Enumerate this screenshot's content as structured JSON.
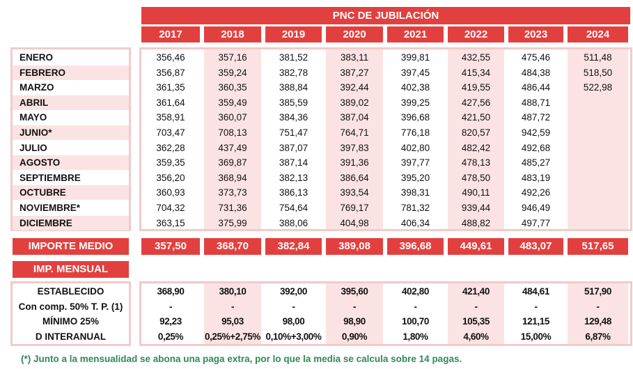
{
  "title": "PNC DE JUBILACIÓN",
  "years": [
    "2017",
    "2018",
    "2019",
    "2020",
    "2021",
    "2022",
    "2023",
    "2024"
  ],
  "months": [
    {
      "label": "ENERO",
      "values": [
        "356,46",
        "357,16",
        "381,52",
        "383,11",
        "399,81",
        "432,55",
        "475,46",
        "511,48"
      ]
    },
    {
      "label": "FEBRERO",
      "values": [
        "356,87",
        "359,24",
        "382,78",
        "387,27",
        "397,45",
        "415,34",
        "484,38",
        "518,50"
      ]
    },
    {
      "label": "MARZO",
      "values": [
        "361,35",
        "360,35",
        "388,84",
        "392,44",
        "402,38",
        "419,55",
        "486,44",
        "522,98"
      ]
    },
    {
      "label": "ABRIL",
      "values": [
        "361,64",
        "359,49",
        "385,59",
        "389,02",
        "399,25",
        "427,56",
        "488,71",
        ""
      ]
    },
    {
      "label": "MAYO",
      "values": [
        "358,91",
        "360,07",
        "384,36",
        "387,04",
        "396,68",
        "421,50",
        "487,72",
        ""
      ]
    },
    {
      "label": "JUNIO*",
      "values": [
        "703,47",
        "708,13",
        "751,47",
        "764,71",
        "776,18",
        "820,57",
        "942,59",
        ""
      ]
    },
    {
      "label": "JULIO",
      "values": [
        "362,28",
        "437,49",
        "387,07",
        "397,83",
        "402,80",
        "482,42",
        "492,68",
        ""
      ]
    },
    {
      "label": "AGOSTO",
      "values": [
        "359,35",
        "369,87",
        "387,14",
        "391,36",
        "397,77",
        "478,13",
        "485,27",
        ""
      ]
    },
    {
      "label": "SEPTIEMBRE",
      "values": [
        "356,20",
        "368,94",
        "382,13",
        "386,64",
        "395,20",
        "478,50",
        "483,19",
        ""
      ]
    },
    {
      "label": "OCTUBRE",
      "values": [
        "360,93",
        "373,73",
        "386,13",
        "393,54",
        "398,31",
        "490,11",
        "492,26",
        ""
      ]
    },
    {
      "label": "NOVIEMBRE*",
      "values": [
        "704,32",
        "731,36",
        "754,64",
        "769,17",
        "781,32",
        "939,44",
        "946,49",
        ""
      ]
    },
    {
      "label": "DICIEMBRE",
      "values": [
        "363,15",
        "375,99",
        "388,06",
        "404,98",
        "406,34",
        "488,82",
        "497,77",
        ""
      ]
    }
  ],
  "importe_medio": {
    "label": "IMPORTE MEDIO",
    "values": [
      "357,50",
      "368,70",
      "382,84",
      "389,08",
      "396,68",
      "449,61",
      "483,07",
      "517,65"
    ]
  },
  "imp_mensual_label": "IMP. MENSUAL",
  "mensual": [
    {
      "label": "ESTABLECIDO",
      "values": [
        "368,90",
        "380,10",
        "392,00",
        "395,60",
        "402,80",
        "421,40",
        "484,61",
        "517,90"
      ]
    },
    {
      "label": "Con comp. 50% T. P. (1)",
      "values": [
        "-",
        "-",
        "-",
        "-",
        "-",
        "-",
        "-",
        "-"
      ]
    },
    {
      "label": "MÍNIMO 25%",
      "values": [
        "92,23",
        "95,03",
        "98,00",
        "98,90",
        "100,70",
        "105,35",
        "121,15",
        "129,48"
      ]
    },
    {
      "label": "D INTERANUAL",
      "values": [
        "0,25%",
        "0,25%+2,75%",
        "0,10%+3,00%",
        "0,90%",
        "1,80%",
        "4,60%",
        "15,00%",
        "6,87%"
      ]
    }
  ],
  "footnote": "(*) Junto a la mensualidad se abona una paga extra, por lo que la media se calcula sobre 14 pagas.",
  "colors": {
    "header_red": "#e2403f",
    "pink": "#fbe3e3",
    "footnote_green": "#2e8a57"
  }
}
